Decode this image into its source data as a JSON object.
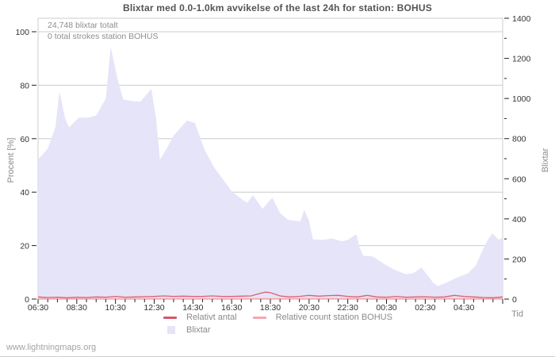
{
  "title": "Blixtar med 0.0-1.0km avvikelse of the last 24h for station: BOHUS",
  "watermark": "www.lightningmaps.org",
  "annotations": {
    "total": "24,748 blixtar totalt",
    "station": "0 total strokes station BOHUS"
  },
  "axes": {
    "left": {
      "label": "Procent  [%]",
      "ticks": [
        0,
        20,
        40,
        60,
        80,
        100
      ]
    },
    "right": {
      "label": "Blixtar",
      "ticks": [
        0,
        200,
        400,
        600,
        800,
        1000,
        1200,
        1400
      ]
    },
    "x": {
      "label": "Tid",
      "ticks": [
        "06:30",
        "08:30",
        "10:30",
        "12:30",
        "14:30",
        "16:30",
        "18:30",
        "20:30",
        "22:30",
        "00:30",
        "02:30",
        "04:30"
      ]
    }
  },
  "legend": [
    {
      "label": "Relativt antal",
      "swatch": "line",
      "color": "#d9566b"
    },
    {
      "label": "Relative count station BOHUS",
      "swatch": "line",
      "color": "#f4a7ae"
    },
    {
      "label": "Blixtar",
      "swatch": "area",
      "color": "#e6e4f8"
    }
  ],
  "colors": {
    "area": "#e6e4f8",
    "relative_line": "#dc5f6e",
    "station_line": "#f4a7ae",
    "grid": "#cccccc",
    "baseline": "#999999",
    "tick": "#222222",
    "title_text": "#545454",
    "muted_text": "#8a8a8a"
  },
  "chart_data": {
    "type": "area",
    "title": "Blixtar med 0.0-1.0km avvikelse of the last 24h for station: BOHUS",
    "xlabel": "Tid",
    "ylabel_left": "Procent [%]",
    "ylabel_right": "Blixtar",
    "ylim_left": [
      0,
      100
    ],
    "ylim_right": [
      0,
      1400
    ],
    "x_unit": "hours since 06:30",
    "x_start": "06:30",
    "x_span_hours": 24,
    "grid": true,
    "legend_position": "bottom",
    "series": [
      {
        "name": "Blixtar",
        "type": "area",
        "axis": "right",
        "points": [
          [
            0,
            695
          ],
          [
            0.5,
            750
          ],
          [
            0.9,
            860
          ],
          [
            1.1,
            1035
          ],
          [
            1.4,
            900
          ],
          [
            1.6,
            855
          ],
          [
            2.1,
            905
          ],
          [
            2.6,
            905
          ],
          [
            3.0,
            915
          ],
          [
            3.5,
            1000
          ],
          [
            3.75,
            1258
          ],
          [
            4.1,
            1100
          ],
          [
            4.4,
            995
          ],
          [
            5.0,
            985
          ],
          [
            5.3,
            985
          ],
          [
            5.85,
            1048
          ],
          [
            6.1,
            900
          ],
          [
            6.3,
            695
          ],
          [
            6.7,
            760
          ],
          [
            7.0,
            815
          ],
          [
            7.7,
            890
          ],
          [
            8.1,
            878
          ],
          [
            8.6,
            745
          ],
          [
            9.1,
            655
          ],
          [
            9.6,
            590
          ],
          [
            10.0,
            537
          ],
          [
            10.5,
            500
          ],
          [
            10.8,
            480
          ],
          [
            11.1,
            518
          ],
          [
            11.6,
            450
          ],
          [
            12.1,
            505
          ],
          [
            12.5,
            430
          ],
          [
            12.9,
            395
          ],
          [
            13.3,
            390
          ],
          [
            13.55,
            387
          ],
          [
            13.75,
            445
          ],
          [
            14.0,
            390
          ],
          [
            14.2,
            298
          ],
          [
            14.7,
            295
          ],
          [
            15.2,
            302
          ],
          [
            15.7,
            288
          ],
          [
            16.0,
            295
          ],
          [
            16.3,
            315
          ],
          [
            16.45,
            322
          ],
          [
            16.6,
            260
          ],
          [
            16.8,
            216
          ],
          [
            17.3,
            212
          ],
          [
            17.8,
            180
          ],
          [
            18.3,
            151
          ],
          [
            19.0,
            124
          ],
          [
            19.4,
            130
          ],
          [
            19.8,
            157
          ],
          [
            20.2,
            110
          ],
          [
            20.4,
            82
          ],
          [
            20.65,
            65
          ],
          [
            21.1,
            82
          ],
          [
            21.6,
            105
          ],
          [
            22.2,
            128
          ],
          [
            22.6,
            165
          ],
          [
            22.9,
            230
          ],
          [
            23.2,
            290
          ],
          [
            23.45,
            328
          ],
          [
            23.65,
            310
          ],
          [
            23.8,
            296
          ],
          [
            24,
            308
          ]
        ]
      },
      {
        "name": "Relativt antal",
        "type": "line",
        "axis": "left",
        "points": [
          [
            0,
            0.8
          ],
          [
            0.5,
            0.6
          ],
          [
            1,
            0.7
          ],
          [
            1.5,
            0.5
          ],
          [
            2,
            0.7
          ],
          [
            2.5,
            0.6
          ],
          [
            3,
            0.8
          ],
          [
            3.5,
            0.7
          ],
          [
            4,
            1.0
          ],
          [
            4.5,
            0.7
          ],
          [
            5,
            0.8
          ],
          [
            5.5,
            0.9
          ],
          [
            6,
            1.0
          ],
          [
            6.5,
            1.2
          ],
          [
            7,
            1.0
          ],
          [
            7.5,
            1.1
          ],
          [
            8,
            1.0
          ],
          [
            8.5,
            1.0
          ],
          [
            9,
            1.2
          ],
          [
            9.5,
            1.0
          ],
          [
            10,
            1.0
          ],
          [
            10.5,
            1.1
          ],
          [
            11,
            1.2
          ],
          [
            11.5,
            2.2
          ],
          [
            11.75,
            2.6
          ],
          [
            12,
            2.4
          ],
          [
            12.5,
            1.2
          ],
          [
            13,
            0.8
          ],
          [
            13.5,
            1.0
          ],
          [
            14,
            1.4
          ],
          [
            14.5,
            1.1
          ],
          [
            15,
            1.3
          ],
          [
            15.5,
            1.4
          ],
          [
            16,
            1.0
          ],
          [
            16.5,
            0.8
          ],
          [
            17,
            1.4
          ],
          [
            17.5,
            0.8
          ],
          [
            18,
            0.7
          ],
          [
            18.5,
            1.0
          ],
          [
            19,
            0.7
          ],
          [
            19.5,
            0.8
          ],
          [
            20,
            0.9
          ],
          [
            20.5,
            0.7
          ],
          [
            21,
            0.8
          ],
          [
            21.5,
            1.4
          ],
          [
            22,
            1.0
          ],
          [
            22.5,
            0.8
          ],
          [
            23,
            0.6
          ],
          [
            23.5,
            0.5
          ],
          [
            24,
            0.8
          ]
        ]
      },
      {
        "name": "Relative count station BOHUS",
        "type": "line",
        "axis": "left",
        "points": [
          [
            0,
            0
          ],
          [
            24,
            0
          ]
        ]
      }
    ]
  }
}
